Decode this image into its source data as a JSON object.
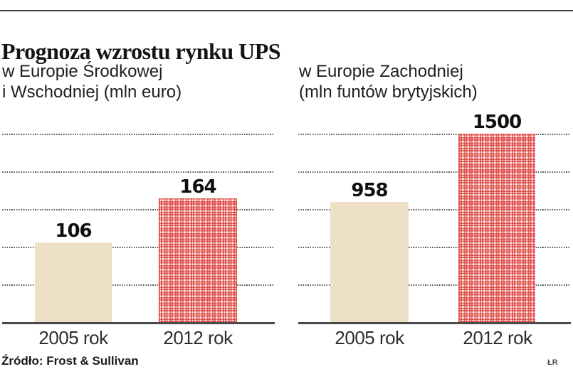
{
  "header": {
    "title": "Prognoza wzrostu rynku UPS"
  },
  "source": {
    "label": "Źródło: Frost & Sullivan"
  },
  "credit": {
    "label": "ŁR"
  },
  "colors": {
    "bar_2005": "#eee0c7",
    "bar_2012_pattern_red": "#d9241e",
    "gridline": "#59595b",
    "axis": "#4a4a4c"
  },
  "chart_data": [
    {
      "type": "bar",
      "title_line1": "w Europie Środkowej",
      "title_line2": "i Wschodniej (mln euro)",
      "region": "Europa Środkowa i Wschodnia",
      "unit": "mln euro",
      "categories": [
        "2005 rok",
        "2012 rok"
      ],
      "values": [
        106,
        164
      ],
      "ylim": [
        0,
        250
      ],
      "gridline_values": [
        50,
        100,
        150,
        200,
        250
      ],
      "grid": "dotted-horizontal",
      "legend": "none"
    },
    {
      "type": "bar",
      "title_line1": "w Europie Zachodniej",
      "title_line2": "(mln funtów brytyjskich)",
      "region": "Europa Zachodnia",
      "unit": "mln funtów brytyjskich",
      "categories": [
        "2005 rok",
        "2012 rok"
      ],
      "values": [
        958,
        1500
      ],
      "ylim": [
        0,
        1500
      ],
      "gridline_values": [
        300,
        600,
        900,
        1200,
        1500
      ],
      "grid": "dotted-horizontal",
      "legend": "none"
    }
  ]
}
